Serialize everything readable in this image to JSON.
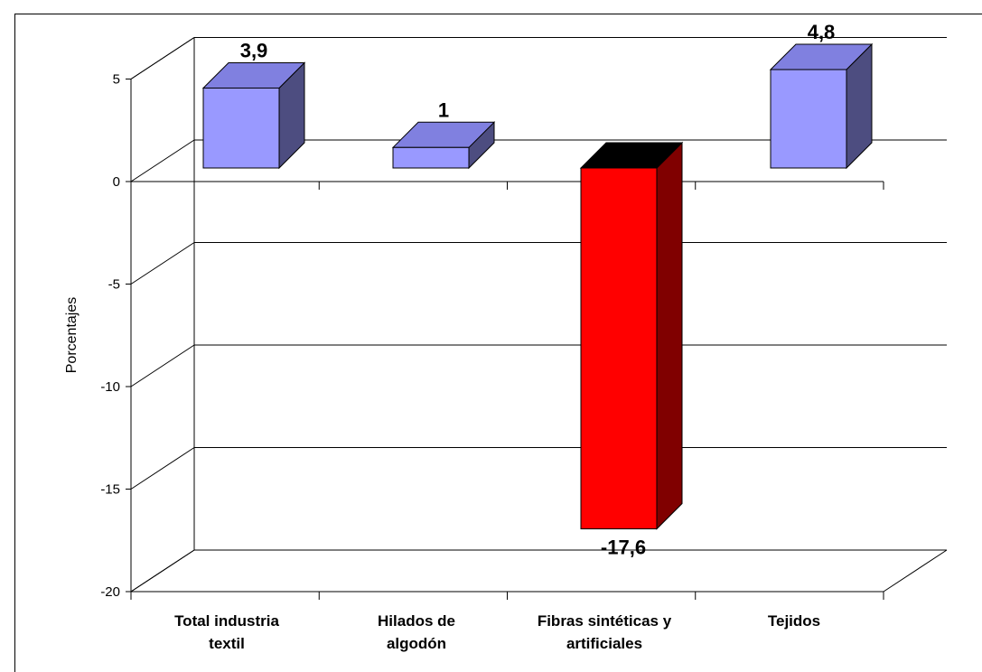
{
  "chart_data": {
    "type": "bar",
    "title": "",
    "ylabel": "Porcentajes",
    "xlabel": "",
    "ylim": [
      -20,
      5
    ],
    "yticks": [
      5,
      0,
      -5,
      -10,
      -15,
      -20
    ],
    "ytick_labels": [
      "5",
      "0",
      "-5",
      "-10",
      "-15",
      "-20"
    ],
    "grid": true,
    "categories": [
      [
        "Total industria",
        "textil"
      ],
      [
        "Hilados de",
        "algodón"
      ],
      [
        "Fibras sintéticas y",
        "artificiales"
      ],
      [
        "Tejidos"
      ]
    ],
    "values": [
      3.9,
      1,
      -17.6,
      4.8
    ],
    "data_labels": [
      "3,9",
      "1",
      "-17,6",
      "4,8"
    ],
    "colors": {
      "positive_front": "#9999ff",
      "positive_top": "#8080e0",
      "positive_side": "#4d4d80",
      "negative_front": "#ff0000",
      "negative_top": "#000000",
      "negative_side": "#800000",
      "grid": "#000000"
    }
  }
}
